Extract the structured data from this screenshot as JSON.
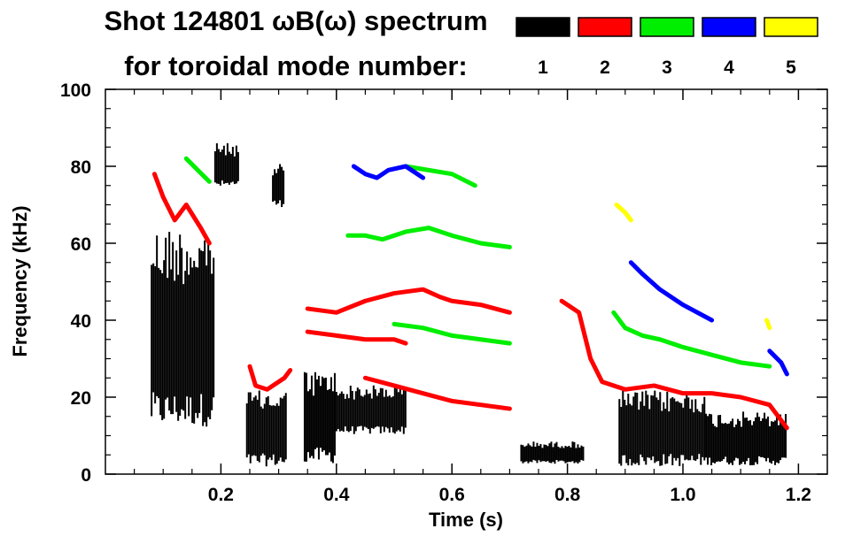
{
  "chart_data": {
    "type": "scatter",
    "title": "Shot 124801 ωB(ω) spectrum",
    "subtitle": "for toroidal mode number:",
    "xlabel": "Time (s)",
    "ylabel": "Frequency (kHz)",
    "xlim": [
      0.0,
      1.25
    ],
    "ylim": [
      0,
      100
    ],
    "x_ticks": [
      0.2,
      0.4,
      0.6,
      0.8,
      1.0,
      1.2
    ],
    "x_tick_labels": [
      "0.2",
      "0.4",
      "0.6",
      "0.8",
      "1.0",
      "1.2"
    ],
    "x_minor_step": 0.05,
    "y_ticks": [
      0,
      20,
      40,
      60,
      80,
      100
    ],
    "y_tick_labels": [
      "0",
      "20",
      "40",
      "60",
      "80",
      "100"
    ],
    "y_minor_step": 5,
    "legend": {
      "title": "for toroidal mode number:",
      "placement": "top-right",
      "entries": [
        {
          "n": "1",
          "color": "#000000"
        },
        {
          "n": "2",
          "color": "#ff0000"
        },
        {
          "n": "3",
          "color": "#00ee00"
        },
        {
          "n": "4",
          "color": "#0000ff"
        },
        {
          "n": "5",
          "color": "#ffff00"
        }
      ]
    },
    "series": [
      {
        "name": "n=1",
        "color": "#000000",
        "blobs": [
          {
            "t0": 0.08,
            "t1": 0.19,
            "f0": 15,
            "f1": 60
          },
          {
            "t0": 0.19,
            "t1": 0.23,
            "f0": 75,
            "f1": 85
          },
          {
            "t0": 0.245,
            "t1": 0.315,
            "f0": 3,
            "f1": 20
          },
          {
            "t0": 0.29,
            "t1": 0.31,
            "f0": 70,
            "f1": 80
          },
          {
            "t0": 0.345,
            "t1": 0.4,
            "f0": 4,
            "f1": 25
          },
          {
            "t0": 0.4,
            "t1": 0.52,
            "f0": 11,
            "f1": 22
          },
          {
            "t0": 0.72,
            "t1": 0.83,
            "f0": 3,
            "f1": 8
          },
          {
            "t0": 0.89,
            "t1": 1.04,
            "f0": 3,
            "f1": 20
          },
          {
            "t0": 1.04,
            "t1": 1.18,
            "f0": 3,
            "f1": 15
          }
        ],
        "lines": []
      },
      {
        "name": "n=2",
        "color": "#ff0000",
        "blobs": [],
        "lines": [
          {
            "points": [
              [
                0.085,
                78
              ],
              [
                0.1,
                72
              ],
              [
                0.12,
                66
              ],
              [
                0.14,
                70
              ],
              [
                0.165,
                64
              ],
              [
                0.18,
                60
              ]
            ]
          },
          {
            "points": [
              [
                0.35,
                43
              ],
              [
                0.4,
                42
              ],
              [
                0.45,
                45
              ],
              [
                0.5,
                47
              ],
              [
                0.55,
                48
              ],
              [
                0.58,
                46
              ],
              [
                0.6,
                45
              ],
              [
                0.65,
                44
              ],
              [
                0.7,
                42
              ]
            ]
          },
          {
            "points": [
              [
                0.35,
                37
              ],
              [
                0.4,
                36
              ],
              [
                0.45,
                35
              ],
              [
                0.5,
                35
              ],
              [
                0.52,
                34
              ]
            ]
          },
          {
            "points": [
              [
                0.25,
                28
              ],
              [
                0.26,
                23
              ],
              [
                0.28,
                22
              ],
              [
                0.31,
                25
              ],
              [
                0.32,
                27
              ]
            ]
          },
          {
            "points": [
              [
                0.45,
                25
              ],
              [
                0.5,
                23
              ],
              [
                0.55,
                21
              ],
              [
                0.6,
                19
              ],
              [
                0.65,
                18
              ],
              [
                0.7,
                17
              ]
            ]
          },
          {
            "points": [
              [
                0.79,
                45
              ],
              [
                0.82,
                42
              ],
              [
                0.84,
                30
              ],
              [
                0.86,
                24
              ],
              [
                0.9,
                22
              ],
              [
                0.95,
                23
              ],
              [
                1.0,
                21
              ],
              [
                1.05,
                21
              ],
              [
                1.1,
                20
              ],
              [
                1.15,
                18
              ],
              [
                1.18,
                12
              ]
            ]
          }
        ]
      },
      {
        "name": "n=3",
        "color": "#00ee00",
        "blobs": [],
        "lines": [
          {
            "points": [
              [
                0.14,
                82
              ],
              [
                0.16,
                79
              ],
              [
                0.18,
                76
              ]
            ]
          },
          {
            "points": [
              [
                0.42,
                62
              ],
              [
                0.45,
                62
              ],
              [
                0.48,
                61
              ],
              [
                0.52,
                63
              ],
              [
                0.56,
                64
              ],
              [
                0.6,
                62
              ],
              [
                0.65,
                60
              ],
              [
                0.7,
                59
              ]
            ]
          },
          {
            "points": [
              [
                0.5,
                39
              ],
              [
                0.55,
                38
              ],
              [
                0.6,
                36
              ],
              [
                0.65,
                35
              ],
              [
                0.7,
                34
              ]
            ]
          },
          {
            "points": [
              [
                0.52,
                80
              ],
              [
                0.56,
                79
              ],
              [
                0.6,
                78
              ],
              [
                0.64,
                75
              ]
            ]
          },
          {
            "points": [
              [
                0.88,
                42
              ],
              [
                0.9,
                38
              ],
              [
                0.93,
                36
              ],
              [
                0.96,
                35
              ],
              [
                1.0,
                33
              ],
              [
                1.05,
                31
              ],
              [
                1.1,
                29
              ],
              [
                1.15,
                28
              ]
            ]
          }
        ]
      },
      {
        "name": "n=4",
        "color": "#0000ff",
        "blobs": [],
        "lines": [
          {
            "points": [
              [
                0.43,
                80
              ],
              [
                0.45,
                78
              ],
              [
                0.47,
                77
              ],
              [
                0.49,
                79
              ],
              [
                0.52,
                80
              ],
              [
                0.55,
                77
              ]
            ]
          },
          {
            "points": [
              [
                0.91,
                55
              ],
              [
                0.93,
                52
              ],
              [
                0.96,
                48
              ],
              [
                1.0,
                44
              ],
              [
                1.05,
                40
              ]
            ]
          },
          {
            "points": [
              [
                1.15,
                32
              ],
              [
                1.17,
                29
              ],
              [
                1.18,
                26
              ]
            ]
          }
        ]
      },
      {
        "name": "n=5",
        "color": "#ffff00",
        "blobs": [],
        "lines": [
          {
            "points": [
              [
                0.885,
                70
              ],
              [
                0.9,
                68
              ],
              [
                0.91,
                66
              ]
            ]
          },
          {
            "points": [
              [
                1.145,
                40
              ],
              [
                1.15,
                38
              ]
            ]
          }
        ]
      }
    ],
    "annotations": []
  }
}
